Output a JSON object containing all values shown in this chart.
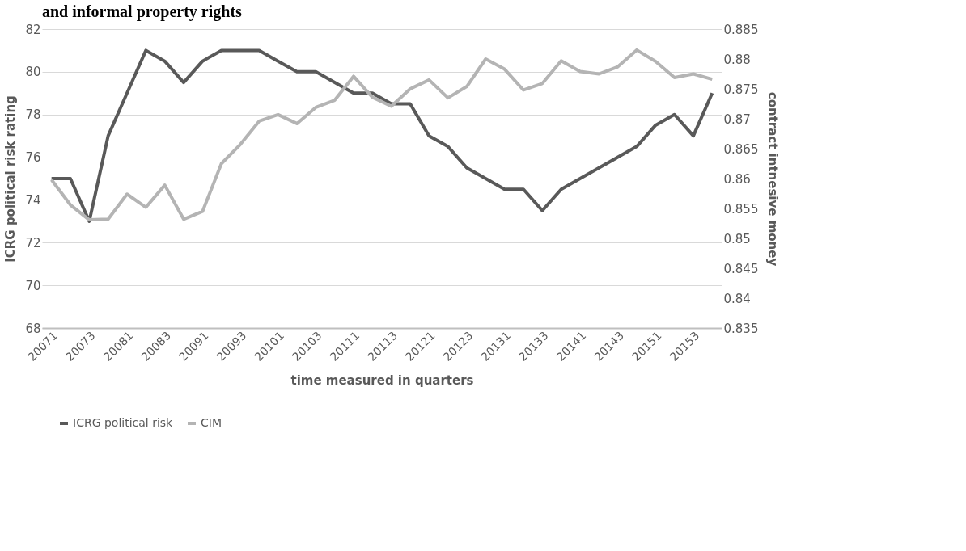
{
  "chart_data": {
    "type": "line",
    "title": "and informal property rights",
    "xlabel": "time measured in quarters",
    "ylabel": "ICRG political risk rating",
    "y2label": "contract intnesive money",
    "categories": [
      "20071",
      null,
      "20073",
      null,
      "20081",
      null,
      "20083",
      null,
      "20091",
      null,
      "20093",
      null,
      "20101",
      null,
      "20103",
      null,
      "20111",
      null,
      "20113",
      null,
      "20121",
      null,
      "20123",
      null,
      "20131",
      null,
      "20133",
      null,
      "20141",
      null,
      "20143",
      null,
      "20151",
      null,
      "20153",
      null
    ],
    "series": [
      {
        "name": "ICRG political risk",
        "color": "#595959",
        "values": [
          75,
          75,
          73,
          77,
          79,
          81,
          80.5,
          79.5,
          80.5,
          81,
          81,
          81,
          80.5,
          80,
          80,
          79.5,
          79,
          79,
          78.5,
          78.5,
          77,
          76.5,
          75.5,
          75,
          74.5,
          74.5,
          73.5,
          74.5,
          75,
          75.5,
          76,
          76.5,
          77.5,
          78,
          77,
          79
        ]
      },
      {
        "name": "CIM",
        "color": "#b4b4b4",
        "axis": "y2",
        "values": [
          0.8598,
          0.8556,
          0.8531,
          0.8532,
          0.8574,
          0.8552,
          0.8589,
          0.8532,
          0.8545,
          0.8625,
          0.8657,
          0.8696,
          0.8707,
          0.8692,
          0.8719,
          0.8731,
          0.8771,
          0.8736,
          0.8721,
          0.875,
          0.8765,
          0.8735,
          0.8754,
          0.88,
          0.8783,
          0.8748,
          0.8759,
          0.8797,
          0.8779,
          0.8775,
          0.8787,
          0.8815,
          0.8796,
          0.8769,
          0.8775,
          0.8766
        ]
      }
    ],
    "ylim": [
      68,
      82
    ],
    "yticks": [
      68,
      70,
      72,
      74,
      76,
      78,
      80,
      82
    ],
    "y2lim": [
      0.835,
      0.885
    ],
    "y2ticks": [
      0.835,
      0.84,
      0.845,
      0.85,
      0.855,
      0.86,
      0.865,
      0.87,
      0.875,
      0.88,
      0.885
    ],
    "grid": "y",
    "legend": "bottom",
    "line_style": "solid"
  }
}
